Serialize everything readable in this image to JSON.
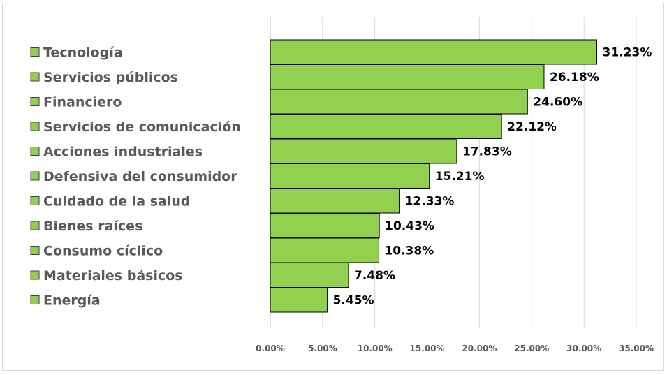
{
  "chart_data": {
    "type": "bar",
    "orientation": "horizontal",
    "categories": [
      "Tecnología",
      "Servicios públicos",
      "Financiero",
      "Servicios de comunicación",
      "Acciones industriales",
      "Defensiva del consumidor",
      "Cuidado de la salud",
      "Bienes raíces",
      "Consumo cíclico",
      "Materiales básicos",
      "Energía"
    ],
    "values": [
      31.23,
      26.18,
      24.6,
      22.12,
      17.83,
      15.21,
      12.33,
      10.43,
      10.38,
      7.48,
      5.45
    ],
    "value_labels": [
      "31.23%",
      "26.18%",
      "24.60%",
      "22.12%",
      "17.83%",
      "15.21%",
      "12.33%",
      "10.43%",
      "10.38%",
      "7.48%",
      "5.45%"
    ],
    "xticks": [
      "0.00%",
      "5.00%",
      "10.00%",
      "15.00%",
      "20.00%",
      "25.00%",
      "30.00%",
      "35.00%"
    ],
    "xlim": [
      0,
      35
    ],
    "grid": true,
    "legend": "left",
    "bar_color": "#92d050",
    "bar_border": "#000000",
    "title": "",
    "xlabel": "",
    "ylabel": ""
  }
}
